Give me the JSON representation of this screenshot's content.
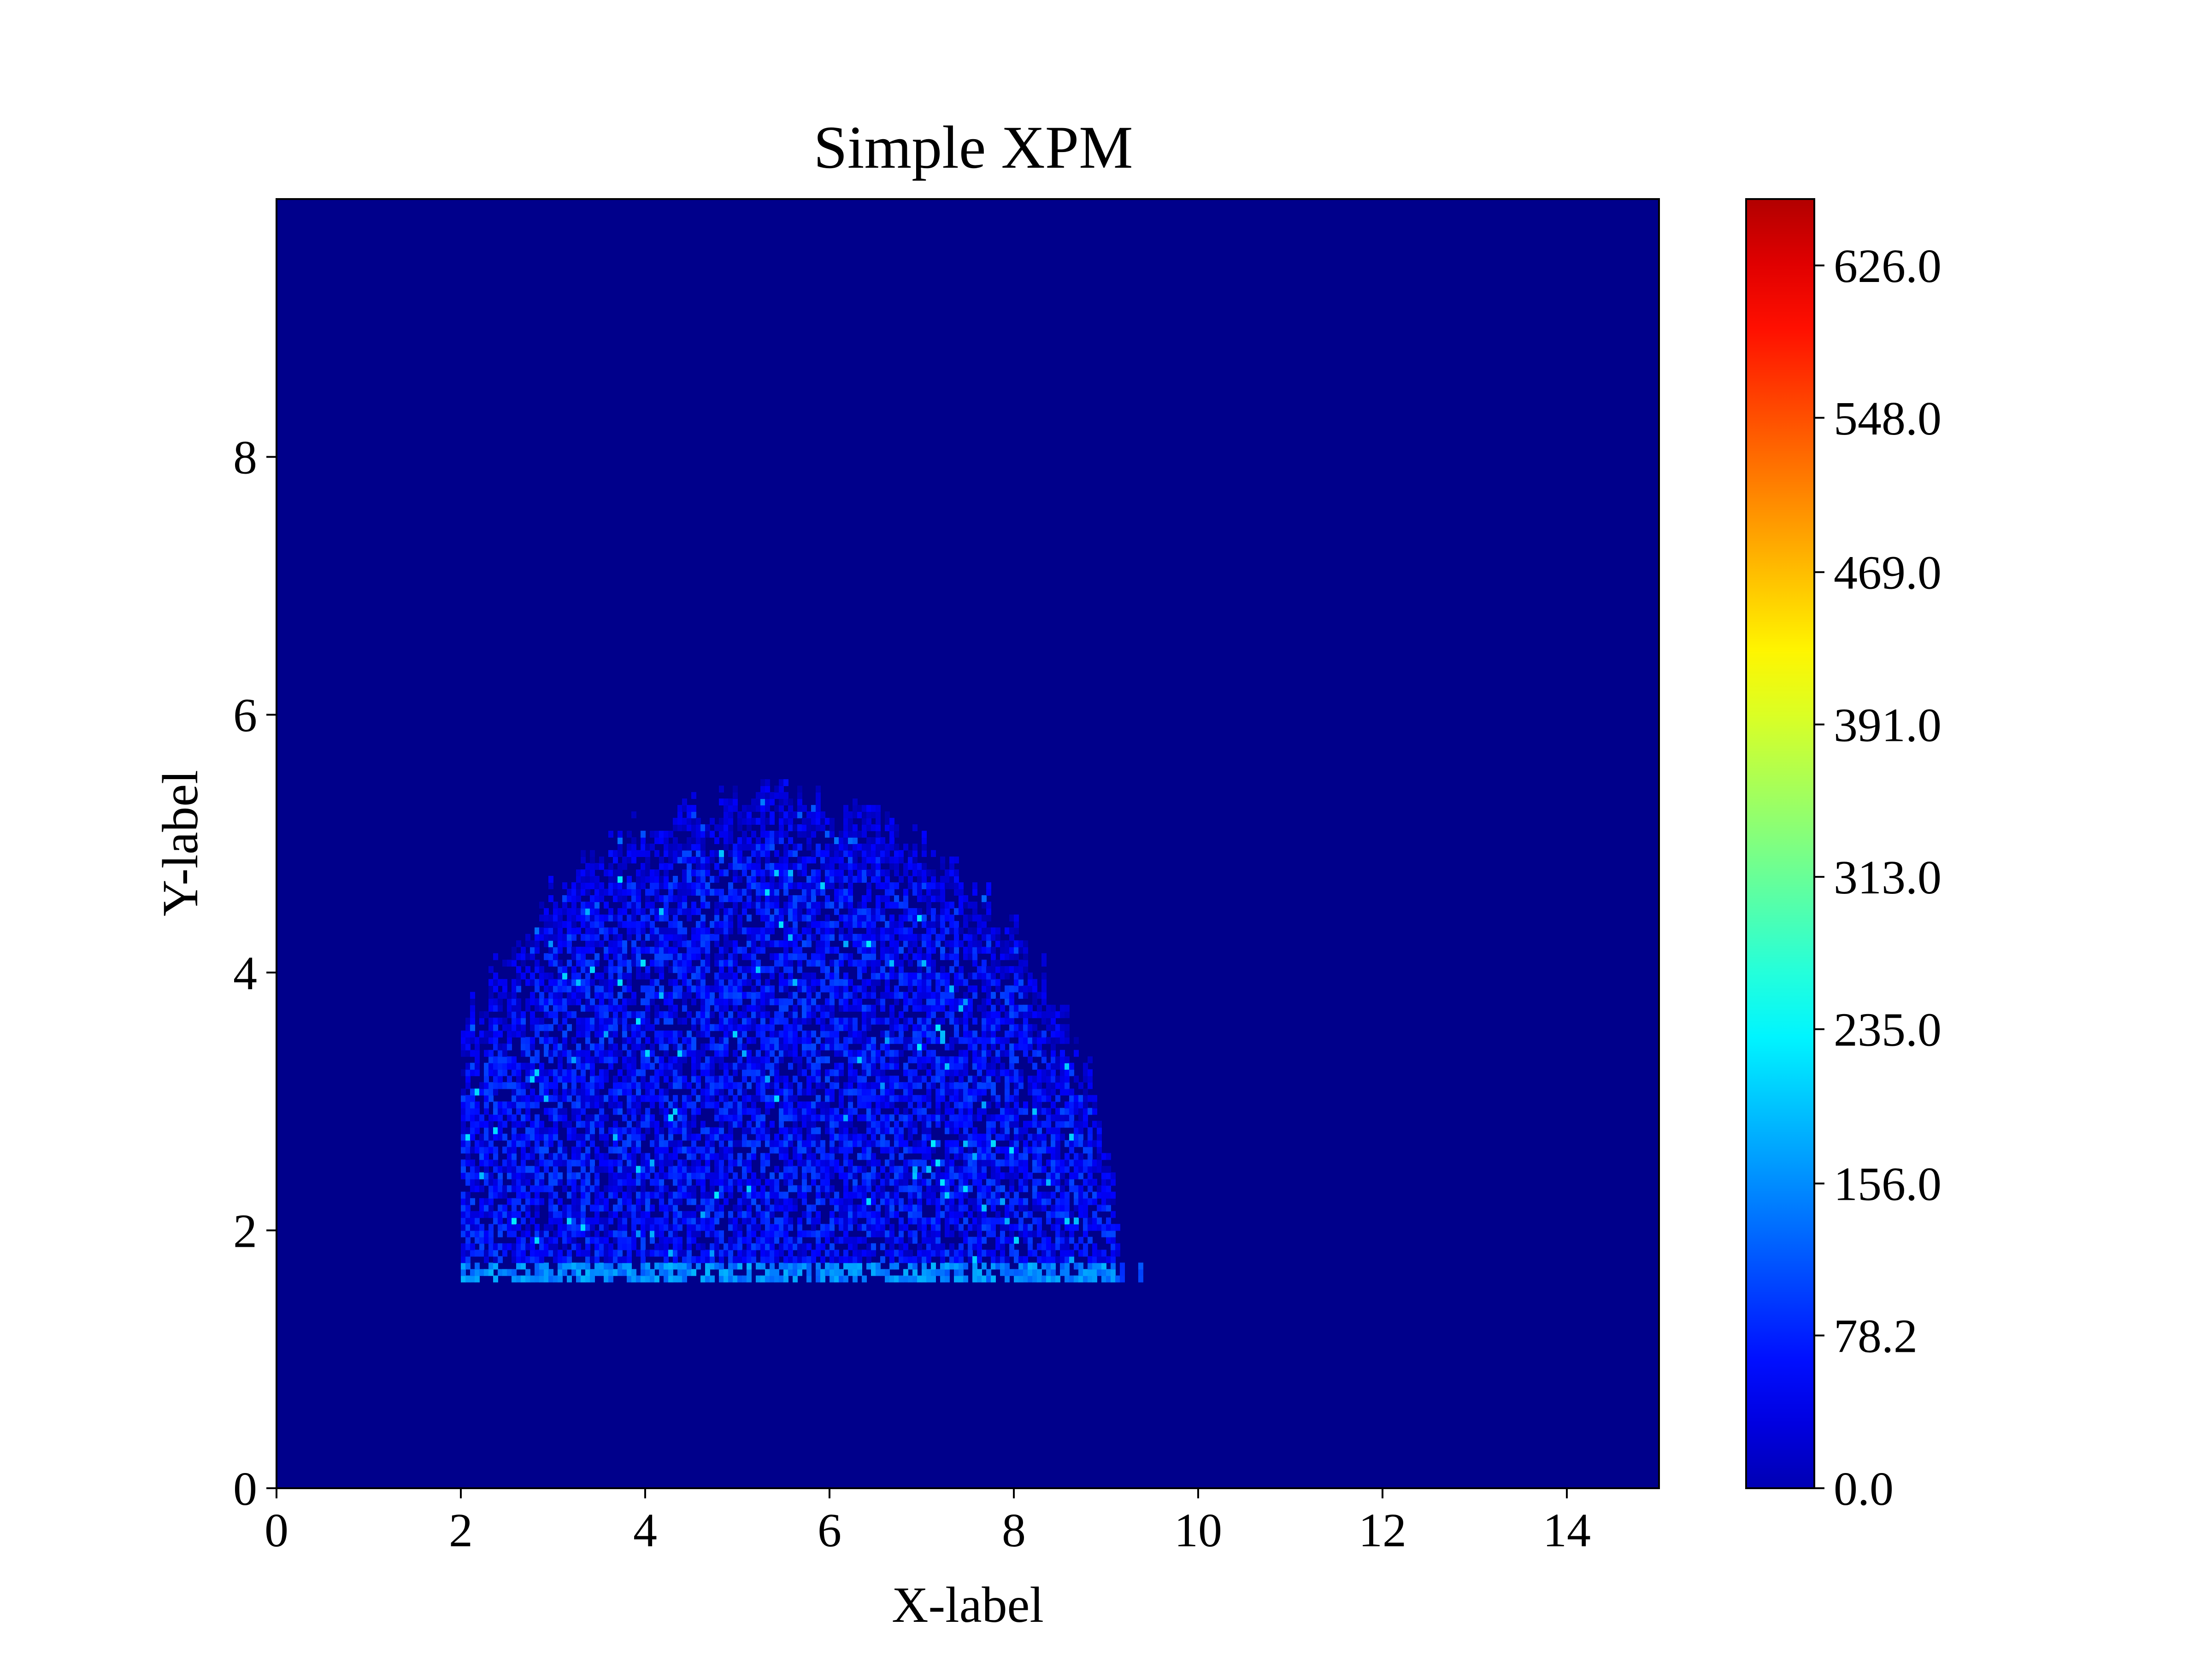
{
  "chart_data": {
    "type": "heatmap",
    "title": "Simple XPM",
    "xlabel": "X-label",
    "ylabel": "Y-label",
    "xlim": [
      0,
      15
    ],
    "ylim": [
      0,
      10
    ],
    "x_ticks": [
      0,
      2,
      4,
      6,
      8,
      10,
      12,
      14
    ],
    "y_ticks": [
      0,
      2,
      4,
      6,
      8
    ],
    "colorbar": {
      "colormap": "jet",
      "vmin": 0.0,
      "vmax": 660.0,
      "ticks": [
        "0.0",
        "78.2",
        "156.0",
        "235.0",
        "313.0",
        "391.0",
        "469.0",
        "548.0",
        "626.0"
      ],
      "tick_values": [
        0.0,
        78.2,
        156.0,
        235.0,
        313.0,
        391.0,
        469.0,
        548.0,
        626.0
      ]
    },
    "background_value": 0.0,
    "region": {
      "shape": "dome",
      "x_range": [
        2.0,
        9.7
      ],
      "y_base": 1.6,
      "y_peak": 5.4,
      "peak_x": 5.3,
      "base_band_value": 200.0,
      "typical_value_range": [
        40.0,
        130.0
      ],
      "max_value": 235.0
    }
  }
}
